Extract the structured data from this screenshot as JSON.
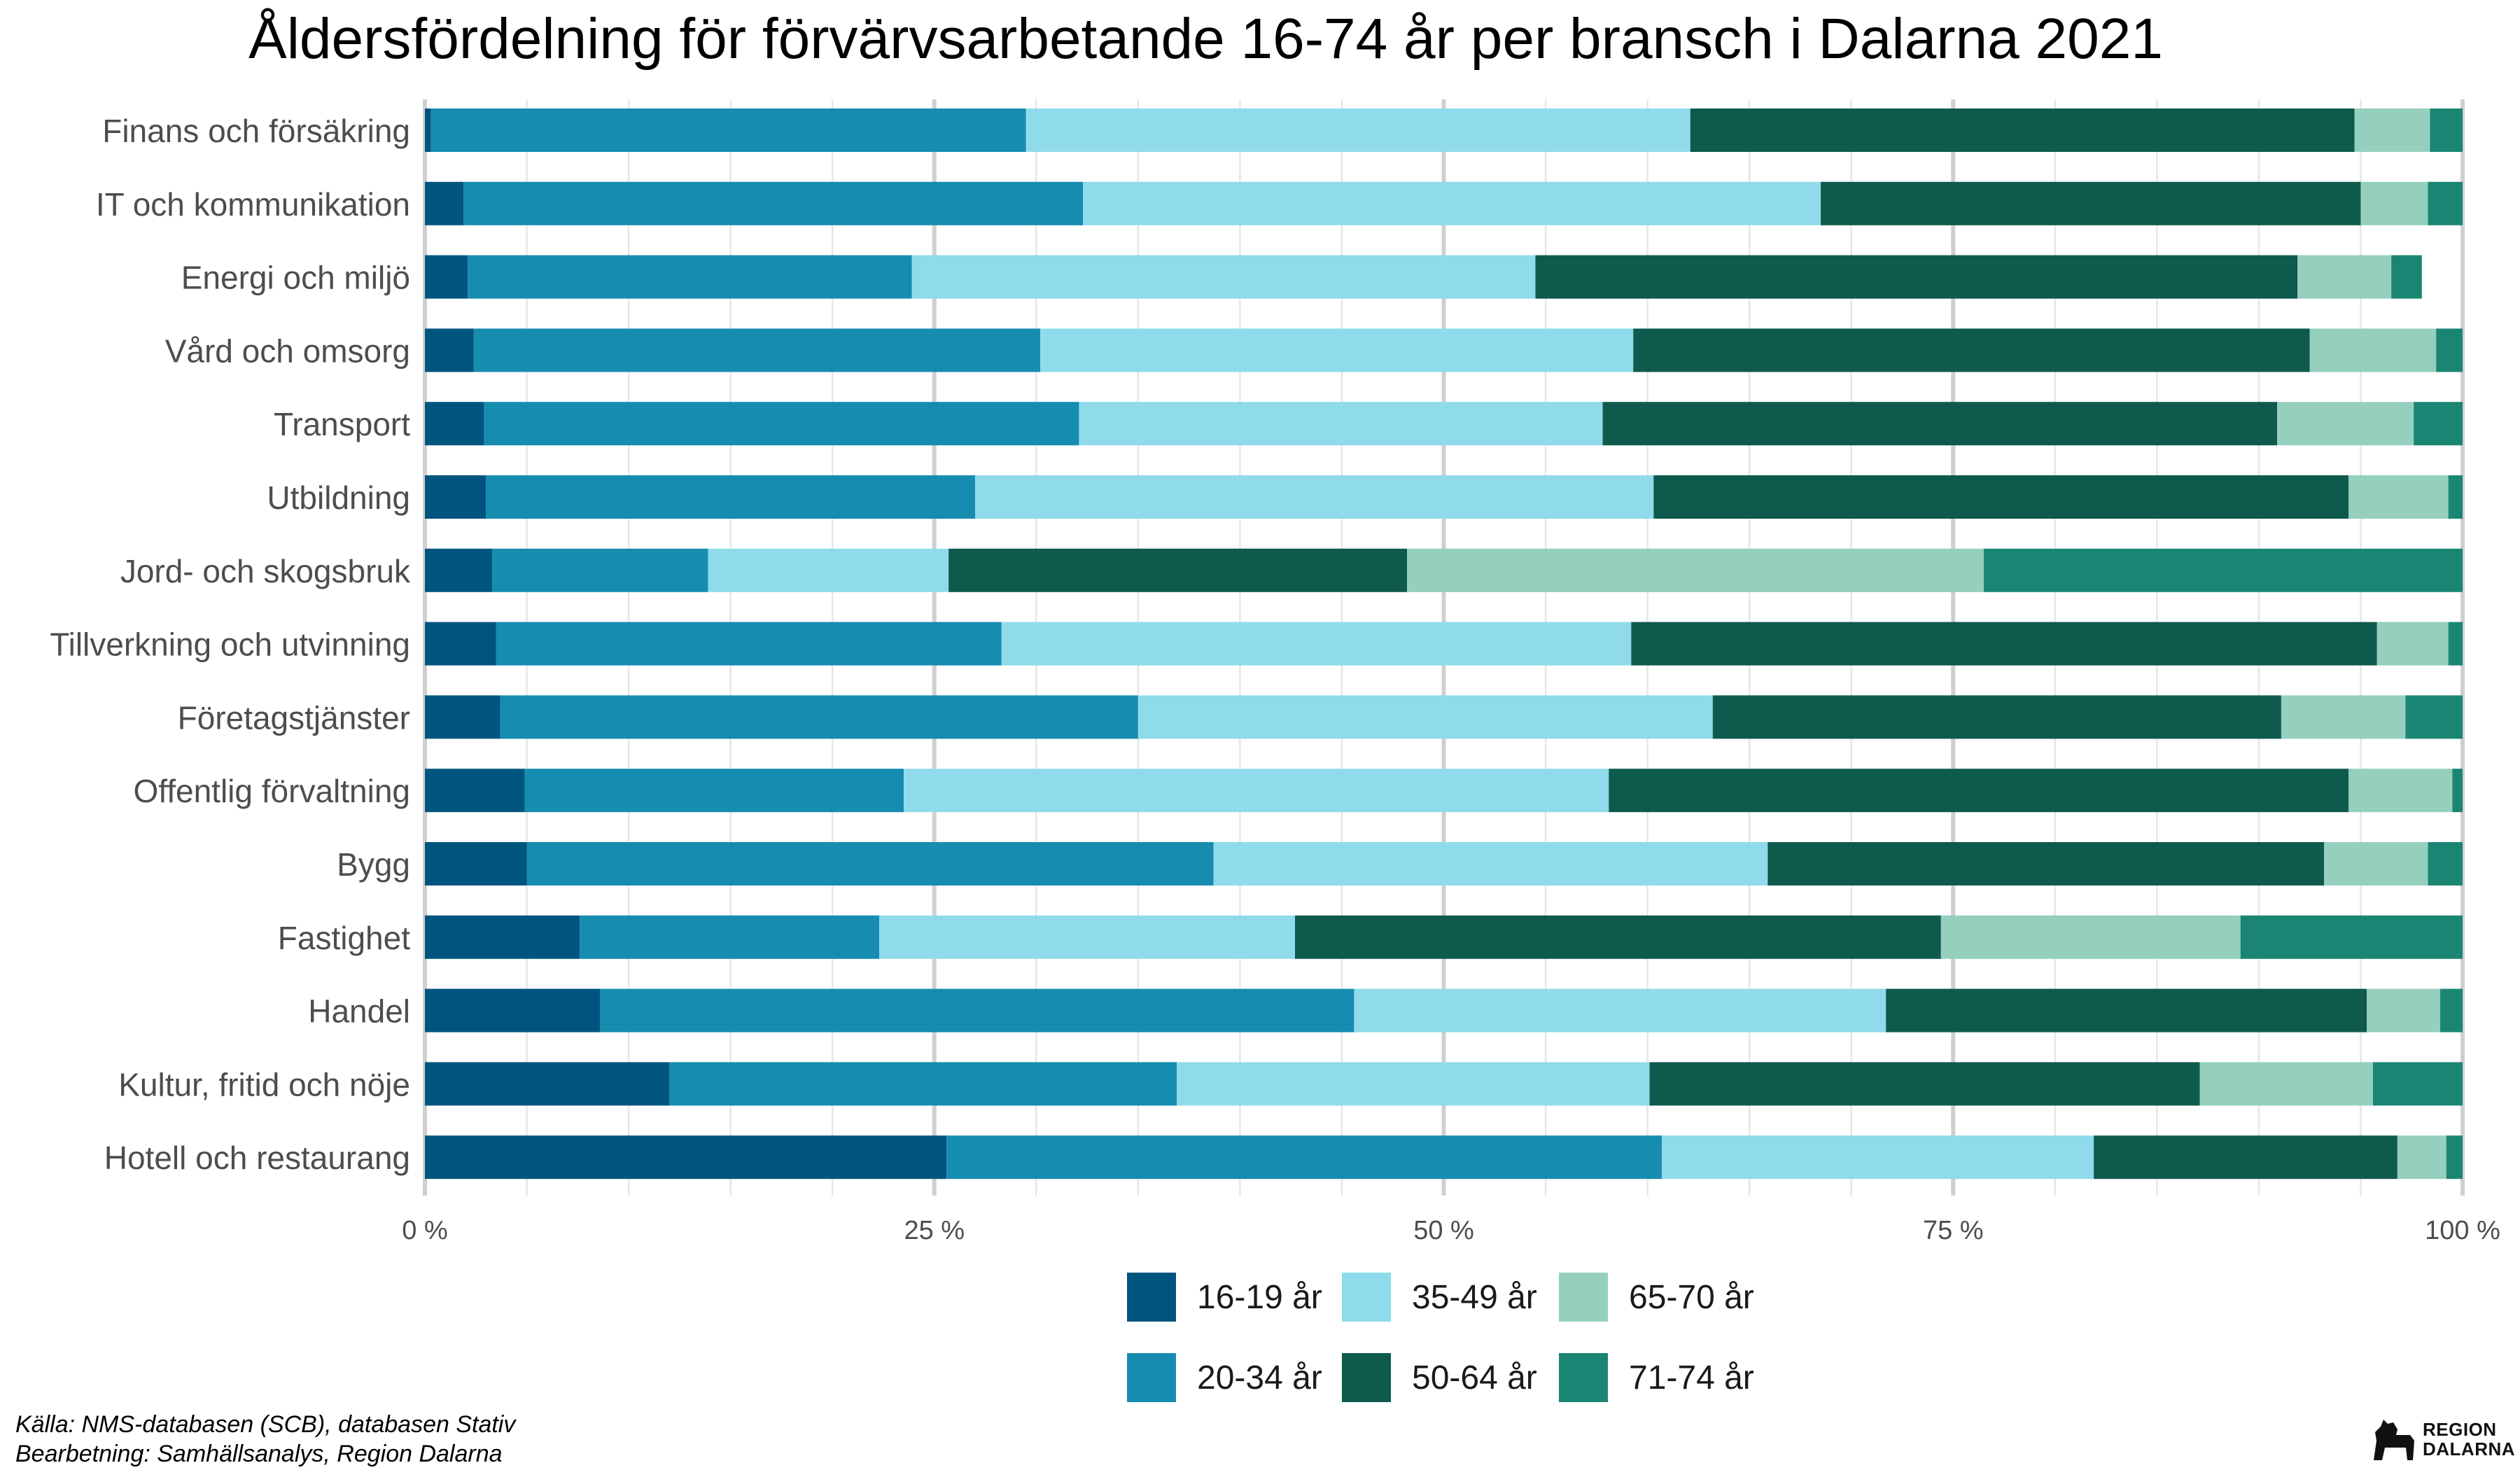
{
  "chart_data": {
    "type": "bar",
    "orientation": "horizontal",
    "stacked": true,
    "normalized": true,
    "title": "Åldersfördelning för förvärvsarbetande 16-74 år per bransch i Dalarna  2021",
    "xlabel": "",
    "ylabel": "",
    "xlim": [
      0,
      100
    ],
    "x_ticks": [
      "0 %",
      "25 %",
      "50 %",
      "75 %",
      "100 %"
    ],
    "grid": true,
    "legend_position": "bottom",
    "categories": [
      "Finans och försäkring",
      "IT och kommunikation",
      "Energi och miljö",
      "Vård och omsorg",
      "Transport",
      "Utbildning",
      "Jord- och skogsbruk",
      "Tillverkning och utvinning",
      "Företagstjänster",
      "Offentlig förvaltning",
      "Bygg",
      "Fastighet",
      "Handel",
      "Kultur, fritid och nöje",
      "Hotell och restaurang"
    ],
    "series": [
      {
        "name": "16-19 år",
        "color": "#00557f",
        "values": [
          0.3,
          1.9,
          2.1,
          2.4,
          2.9,
          3.0,
          3.3,
          3.5,
          3.7,
          4.9,
          5.0,
          7.6,
          8.6,
          12.0,
          25.6
        ]
      },
      {
        "name": "20-34 år",
        "color": "#168cb0",
        "values": [
          29.2,
          30.4,
          21.8,
          27.8,
          29.2,
          24.0,
          10.6,
          24.8,
          31.3,
          18.6,
          33.7,
          14.7,
          37.0,
          24.9,
          35.1
        ]
      },
      {
        "name": "35-49 år",
        "color": "#8fdbeb",
        "values": [
          32.6,
          36.2,
          30.6,
          29.1,
          25.7,
          33.3,
          11.8,
          30.9,
          28.2,
          34.6,
          27.2,
          20.4,
          26.1,
          23.2,
          21.2
        ]
      },
      {
        "name": "50-64 år",
        "color": "#0e5a4c",
        "values": [
          32.6,
          26.5,
          37.4,
          33.2,
          33.1,
          34.1,
          22.5,
          36.6,
          27.9,
          36.3,
          27.3,
          31.7,
          23.6,
          27.0,
          14.9
        ]
      },
      {
        "name": "65-70 år",
        "color": "#95cfbe",
        "values": [
          3.7,
          3.3,
          4.6,
          6.2,
          6.7,
          4.9,
          28.3,
          3.5,
          6.1,
          5.1,
          5.1,
          14.7,
          3.6,
          8.5,
          2.4
        ]
      },
      {
        "name": "71-74 år",
        "color": "#1b8573",
        "values": [
          1.6,
          1.7,
          1.5,
          1.3,
          2.4,
          0.7,
          23.5,
          0.7,
          2.8,
          0.5,
          1.7,
          10.9,
          1.1,
          4.4,
          0.8
        ]
      }
    ]
  },
  "caption": {
    "line1": "Källa: NMS-databasen (SCB), databasen Stativ",
    "line2": "Bearbetning: Samhällsanalys, Region Dalarna"
  },
  "logo": {
    "icon": "dalahorse-icon",
    "line1": "REGION",
    "line2": "DALARNA"
  }
}
